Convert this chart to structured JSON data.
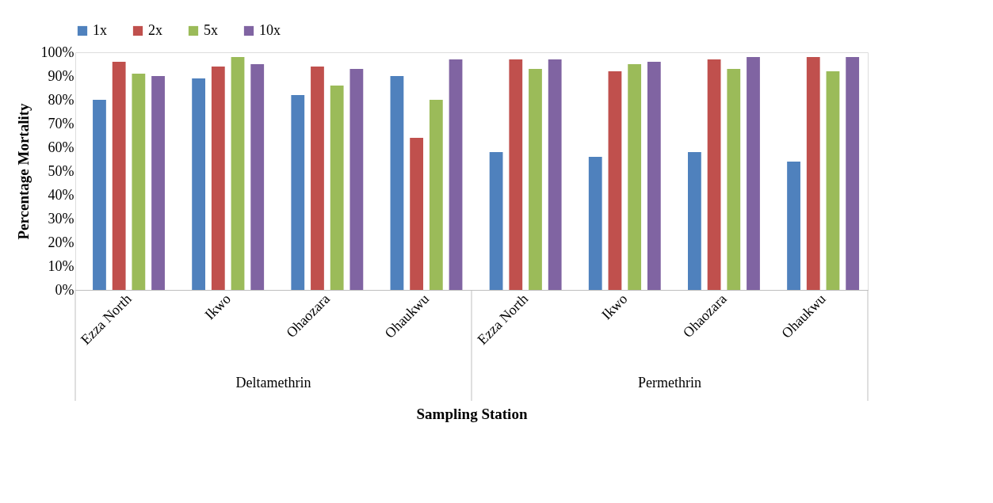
{
  "chart_data": {
    "type": "bar",
    "xlabel": "Sampling Station",
    "ylabel": "Percentage Mortality",
    "categories": [
      "Ezza North",
      "Ikwo",
      "Ohaozara",
      "Ohaukwu",
      "Ezza North",
      "Ikwo",
      "Ohaozara",
      "Ohaukwu"
    ],
    "annotations": [
      "Deltamethrin",
      "Permethrin"
    ],
    "series": [
      {
        "name": "1x",
        "color": "#4f81bd",
        "values": [
          80,
          89,
          82,
          90,
          58,
          56,
          58,
          54
        ]
      },
      {
        "name": "2x",
        "color": "#c0504d",
        "values": [
          96,
          94,
          94,
          64,
          97,
          92,
          97,
          98
        ]
      },
      {
        "name": "5x",
        "color": "#9bbb59",
        "values": [
          91,
          98,
          86,
          80,
          93,
          95,
          93,
          92
        ]
      },
      {
        "name": "10x",
        "color": "#8064a2",
        "values": [
          90,
          95,
          93,
          97,
          97,
          96,
          98,
          98
        ]
      }
    ],
    "ylim": [
      0,
      100
    ],
    "yticks": [
      {
        "value": 0,
        "label": "0%"
      },
      {
        "value": 10,
        "label": "10%"
      },
      {
        "value": 20,
        "label": "20%"
      },
      {
        "value": 30,
        "label": "30%"
      },
      {
        "value": 40,
        "label": "40%"
      },
      {
        "value": 50,
        "label": "50%"
      },
      {
        "value": 60,
        "label": "60%"
      },
      {
        "value": 70,
        "label": "70%"
      },
      {
        "value": 80,
        "label": "80%"
      },
      {
        "value": 90,
        "label": "90%"
      },
      {
        "value": 100,
        "label": "100%"
      }
    ],
    "grid": false,
    "legend": "top"
  }
}
